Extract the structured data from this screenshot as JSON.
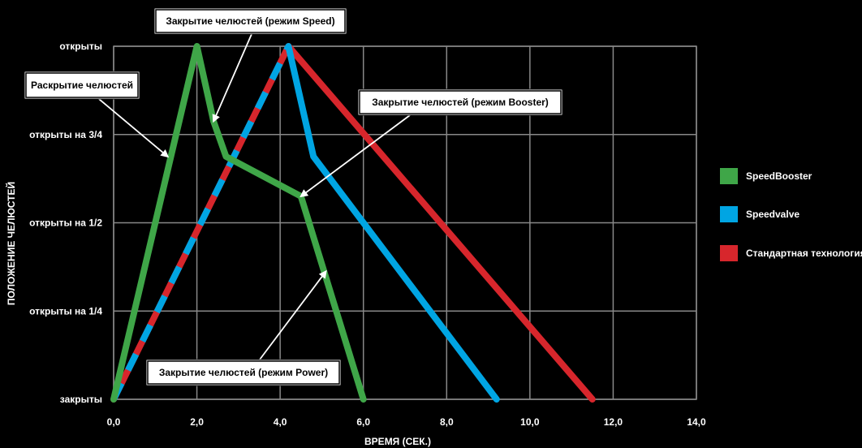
{
  "chart_data": {
    "type": "line",
    "title": "",
    "xlabel": "ВРЕМЯ (СЕК.)",
    "ylabel": "ПОЛОЖЕНИЕ ЧЕЛЮСТЕЙ",
    "xlim": [
      0,
      14
    ],
    "ylim": [
      0,
      4
    ],
    "x_ticks": [
      {
        "value": 0,
        "label": "0,0"
      },
      {
        "value": 2,
        "label": "2,0"
      },
      {
        "value": 4,
        "label": "4,0"
      },
      {
        "value": 6,
        "label": "6,0"
      },
      {
        "value": 8,
        "label": "8,0"
      },
      {
        "value": 10,
        "label": "10,0"
      },
      {
        "value": 12,
        "label": "12,0"
      },
      {
        "value": 14,
        "label": "14,0"
      }
    ],
    "y_ticks": [
      {
        "value": 0,
        "label": "закрыты"
      },
      {
        "value": 1,
        "label": "открыты на 1/4"
      },
      {
        "value": 2,
        "label": "открыты на 1/2"
      },
      {
        "value": 3,
        "label": "открыты на 3/4"
      },
      {
        "value": 4,
        "label": "открыты"
      }
    ],
    "grid": true,
    "legend_position": "right",
    "background_color": "#000000",
    "grid_color": "#888888",
    "series": [
      {
        "name": "Стандартная технология",
        "color": "#d7262c",
        "points": [
          [
            0,
            0
          ],
          [
            4.2,
            4
          ],
          [
            11.5,
            0
          ]
        ]
      },
      {
        "name": "Speedvalve",
        "color": "#00a5e3",
        "points": [
          [
            0,
            0
          ],
          [
            4.2,
            4
          ],
          [
            4.8,
            2.75
          ],
          [
            9.2,
            0
          ]
        ]
      },
      {
        "name": "SpeedBooster",
        "color": "#3fa648",
        "points": [
          [
            0,
            0
          ],
          [
            2.0,
            4
          ],
          [
            2.4,
            3.15
          ],
          [
            2.7,
            2.75
          ],
          [
            4.5,
            2.3
          ],
          [
            6.0,
            0
          ]
        ]
      }
    ],
    "legend": [
      {
        "label": "SpeedBooster",
        "color": "#3fa648"
      },
      {
        "label": "Speedvalve",
        "color": "#00a5e3"
      },
      {
        "label": "Стандартная технология",
        "color": "#d7262c"
      }
    ],
    "annotations": [
      {
        "text": "Закрытие челюстей (режим Speed)",
        "target": [
          2.4,
          3.15
        ]
      },
      {
        "text": "Раскрытие челюстей",
        "target": [
          1.3,
          2.75
        ]
      },
      {
        "text": "Закрытие челюстей (режим Booster)",
        "target": [
          4.5,
          2.3
        ]
      },
      {
        "text": "Закрытие челюстей (режим Power)",
        "target": [
          5.1,
          1.45
        ]
      }
    ]
  }
}
